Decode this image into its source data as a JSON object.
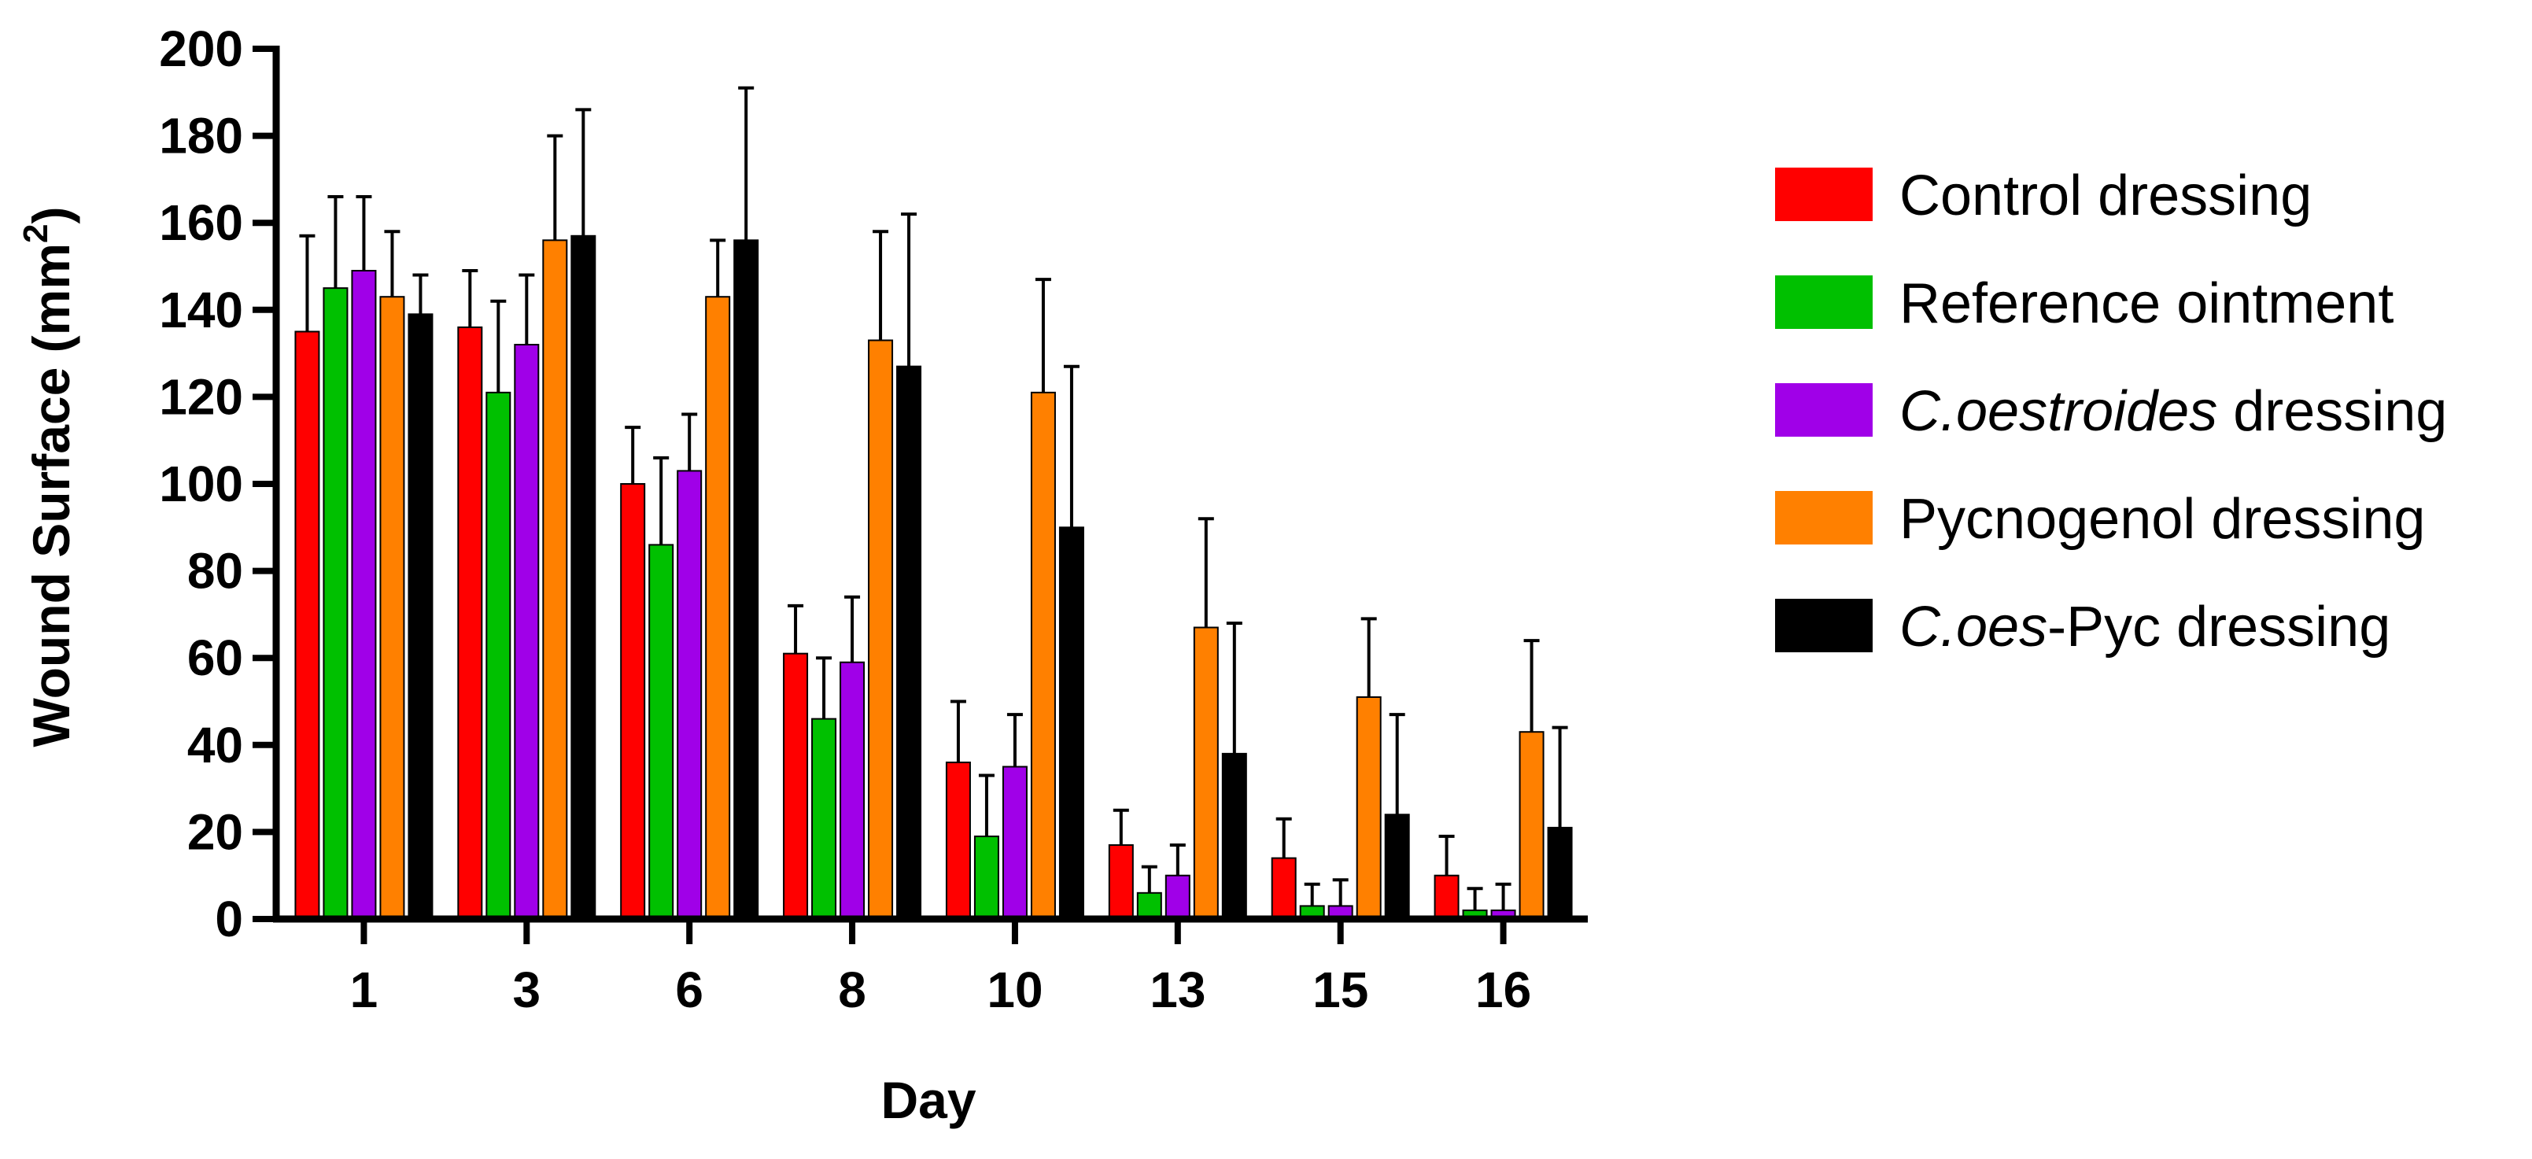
{
  "chart_data": {
    "type": "bar",
    "title": "",
    "xlabel": "Day",
    "ylabel_main": "Wound Surface (mm",
    "ylabel_sup": "2",
    "ylabel_close": ")",
    "ylim": [
      0,
      200
    ],
    "yticks": [
      "0",
      "20",
      "40",
      "60",
      "80",
      "100",
      "120",
      "140",
      "160",
      "180",
      "200"
    ],
    "categories": [
      "1",
      "3",
      "6",
      "8",
      "10",
      "13",
      "15",
      "16"
    ],
    "error_bars": "upper",
    "legend_position": "right",
    "series": [
      {
        "name": "Control dressing",
        "legend_parts": [
          {
            "text": "Control dressing",
            "italic": false
          }
        ],
        "color": "#ff0000",
        "values": [
          135,
          136,
          100,
          61,
          36,
          17,
          14,
          10
        ],
        "errors": [
          22,
          13,
          13,
          11,
          14,
          8,
          9,
          9
        ]
      },
      {
        "name": "Reference ointment",
        "legend_parts": [
          {
            "text": "Reference ointment",
            "italic": false
          }
        ],
        "color": "#00c000",
        "values": [
          145,
          121,
          86,
          46,
          19,
          6,
          3,
          2
        ],
        "errors": [
          21,
          21,
          20,
          14,
          14,
          6,
          5,
          5
        ]
      },
      {
        "name": "C.oestroides dressing",
        "legend_parts": [
          {
            "text": "C.oestroides",
            "italic": true
          },
          {
            "text": " dressing",
            "italic": false
          }
        ],
        "color": "#a000e8",
        "values": [
          149,
          132,
          103,
          59,
          35,
          10,
          3,
          2
        ],
        "errors": [
          17,
          16,
          13,
          15,
          12,
          7,
          6,
          6
        ]
      },
      {
        "name": "Pycnogenol dressing",
        "legend_parts": [
          {
            "text": "Pycnogenol dressing",
            "italic": false
          }
        ],
        "color": "#ff8000",
        "values": [
          143,
          156,
          143,
          133,
          121,
          67,
          51,
          43
        ],
        "errors": [
          15,
          24,
          13,
          25,
          26,
          25,
          18,
          21
        ]
      },
      {
        "name": "C.oes-Pyc dressing",
        "legend_parts": [
          {
            "text": "C.oes",
            "italic": true
          },
          {
            "text": "-Pyc dressing",
            "italic": false
          }
        ],
        "color": "#000000",
        "values": [
          139,
          157,
          156,
          127,
          90,
          38,
          24,
          21
        ],
        "errors": [
          9,
          29,
          35,
          35,
          37,
          30,
          23,
          23
        ]
      }
    ]
  }
}
